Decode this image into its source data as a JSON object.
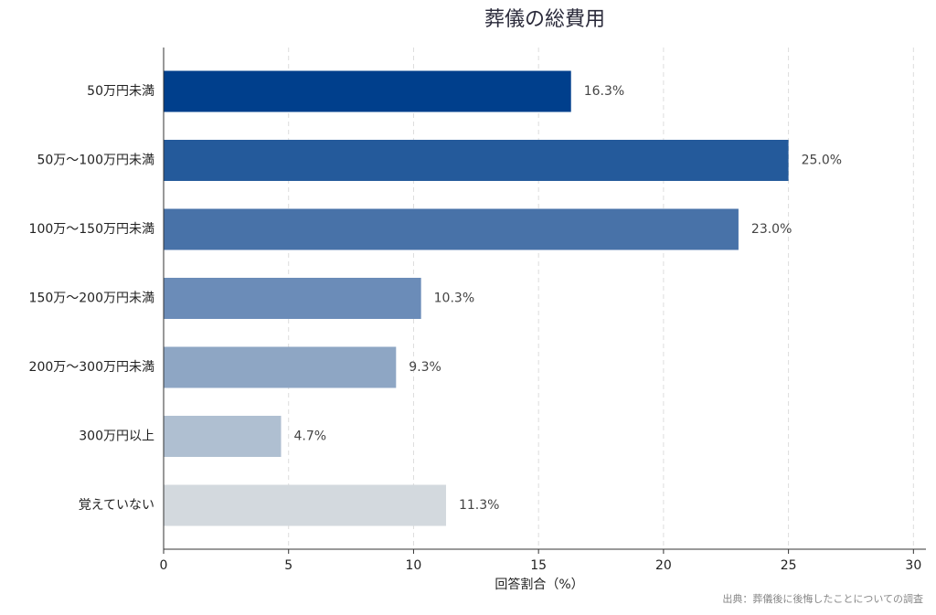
{
  "chart_data": {
    "type": "bar",
    "orientation": "horizontal",
    "title": "葬儀の総費用",
    "x_label": "回答割合（%）",
    "source": "出典：葬儀後に後悔したことについての調査",
    "categories": [
      "50万円未満",
      "50万〜100万円未満",
      "100万〜150万円未満",
      "150万〜200万円未満",
      "200万〜300万円未満",
      "300万円以上",
      "覚えていない"
    ],
    "values": [
      16.3,
      25.0,
      23.0,
      10.3,
      9.3,
      4.7,
      11.3
    ],
    "value_labels": [
      "16.3%",
      "25.0%",
      "23.0%",
      "10.3%",
      "9.3%",
      "4.7%",
      "11.3%"
    ],
    "colors": [
      "#003f8c",
      "#245a9b",
      "#4872a8",
      "#6b8cb8",
      "#8ea6c4",
      "#afbfd1",
      "#d3d9de"
    ],
    "xlim": [
      0,
      30.5
    ],
    "xticks": [
      0,
      5,
      10,
      15,
      20,
      25,
      30
    ],
    "grid": true
  }
}
